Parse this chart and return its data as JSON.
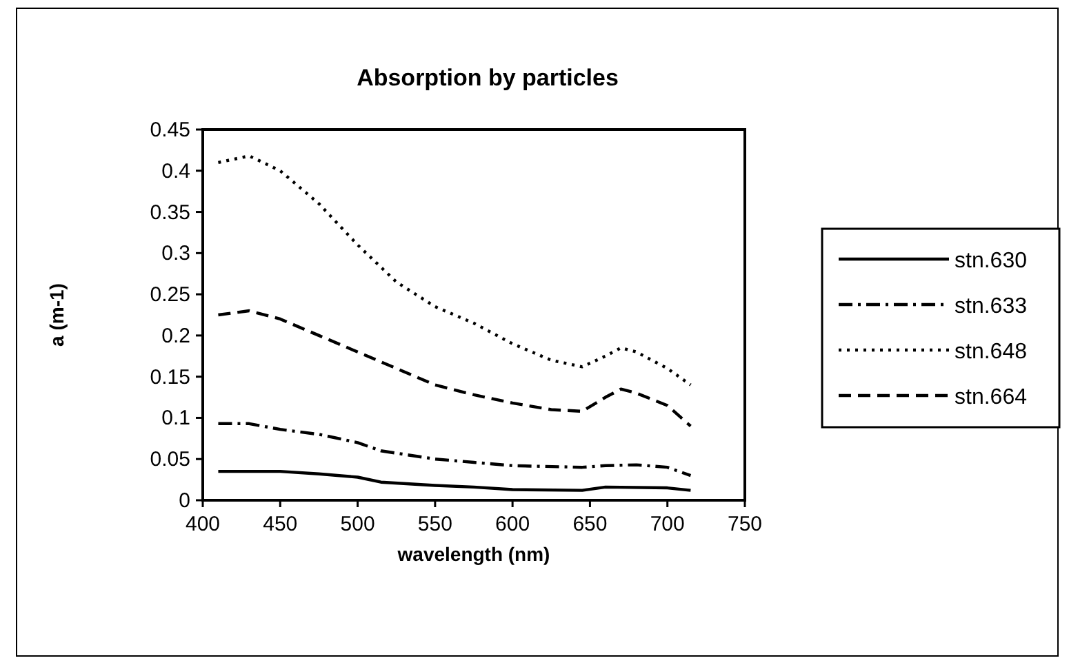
{
  "chart_data": {
    "type": "line",
    "title": "Absorption by particles",
    "xlabel": "wavelength (nm)",
    "ylabel": "a (m-1)",
    "xlim": [
      400,
      750
    ],
    "xticks": [
      400,
      450,
      500,
      550,
      600,
      650,
      700,
      750
    ],
    "ylim": [
      0,
      0.45
    ],
    "yticks": [
      0,
      0.05,
      0.1,
      0.15,
      0.2,
      0.25,
      0.3,
      0.35,
      0.4,
      0.45
    ],
    "grid": false,
    "legend": "right",
    "marker": "none",
    "series": [
      {
        "name": "stn.630",
        "color": "#000000",
        "line_style": "solid",
        "x": [
          410,
          450,
          475,
          500,
          515,
          550,
          575,
          600,
          645,
          660,
          700,
          715
        ],
        "values": [
          0.035,
          0.035,
          0.032,
          0.028,
          0.022,
          0.018,
          0.016,
          0.013,
          0.012,
          0.016,
          0.015,
          0.012
        ]
      },
      {
        "name": "stn.633",
        "color": "#000000",
        "line_style": "dashdot",
        "x": [
          410,
          430,
          450,
          475,
          500,
          515,
          550,
          575,
          600,
          645,
          660,
          680,
          700,
          715
        ],
        "values": [
          0.093,
          0.093,
          0.086,
          0.08,
          0.07,
          0.06,
          0.05,
          0.046,
          0.042,
          0.04,
          0.042,
          0.043,
          0.04,
          0.03
        ]
      },
      {
        "name": "stn.648",
        "color": "#000000",
        "line_style": "dotted",
        "x": [
          410,
          430,
          450,
          475,
          500,
          525,
          550,
          575,
          600,
          625,
          645,
          660,
          670,
          680,
          700,
          715
        ],
        "values": [
          0.41,
          0.418,
          0.4,
          0.36,
          0.31,
          0.265,
          0.235,
          0.215,
          0.19,
          0.17,
          0.162,
          0.175,
          0.185,
          0.18,
          0.16,
          0.14
        ]
      },
      {
        "name": "stn.664",
        "color": "#000000",
        "line_style": "dashed",
        "x": [
          410,
          430,
          450,
          475,
          500,
          525,
          550,
          575,
          600,
          625,
          645,
          660,
          670,
          680,
          700,
          715
        ],
        "values": [
          0.225,
          0.23,
          0.22,
          0.2,
          0.18,
          0.16,
          0.14,
          0.128,
          0.118,
          0.11,
          0.108,
          0.125,
          0.135,
          0.13,
          0.115,
          0.09
        ]
      }
    ]
  }
}
